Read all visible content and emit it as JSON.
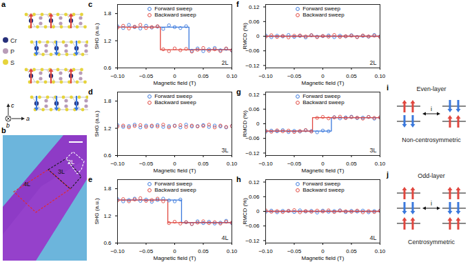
{
  "chart_data": [
    {
      "type": "scatter",
      "panel": "c",
      "annotation": "2L",
      "x_label": "Magnetic field (T)",
      "y_label": "SHG (a.u.)",
      "legend": "top",
      "grid": false,
      "xlim": [
        -0.1,
        0.1
      ],
      "ylim": [
        0.6,
        2.0
      ],
      "xticks": [
        {
          "value": -0.1,
          "label": "−0.10"
        },
        {
          "value": -0.05,
          "label": "−0.05"
        },
        0,
        0.05,
        {
          "value": 0.1,
          "label": "0.10"
        }
      ],
      "yticks": [
        0.6,
        1.2,
        1.8
      ],
      "x": [
        -0.1,
        -0.09,
        -0.08,
        -0.07,
        -0.06,
        -0.05,
        -0.04,
        -0.03,
        -0.02,
        -0.01,
        0,
        0.01,
        0.02,
        0.03,
        0.04,
        0.05,
        0.06,
        0.07,
        0.08,
        0.09,
        0.1
      ],
      "series": [
        {
          "name": "Forward sweep",
          "color": "#3a78dc",
          "marker": "circle",
          "line_style": "solid",
          "values": [
            1.52,
            1.48,
            1.55,
            1.5,
            1.47,
            1.53,
            1.49,
            1.51,
            1.46,
            1.54,
            1.5,
            1.48,
            1.52,
            0.98,
            1.03,
            0.97,
            1.01,
            1.04,
            0.99,
            1.02,
            0.98
          ],
          "fit_x": [
            -0.1,
            0.025,
            0.025,
            0.1
          ],
          "fit_values": [
            1.5,
            1.5,
            1.0,
            1.0
          ]
        },
        {
          "name": "Backward sweep",
          "color": "#e0463e",
          "marker": "circle",
          "line_style": "solid",
          "values": [
            1.49,
            1.53,
            1.47,
            1.51,
            1.55,
            1.48,
            1.5,
            1.52,
            1.01,
            0.97,
            1.03,
            0.99,
            1.02,
            0.96,
            1.0,
            1.04,
            0.98,
            1.01,
            0.97,
            1.03,
            0.99
          ],
          "fit_x": [
            0.1,
            -0.025,
            -0.025,
            -0.1
          ],
          "fit_values": [
            1.0,
            1.0,
            1.5,
            1.5
          ]
        }
      ]
    },
    {
      "type": "scatter",
      "panel": "d",
      "annotation": "3L",
      "x_label": "Magnetic field (T)",
      "y_label": "SHG (a.u.)",
      "legend": "top",
      "grid": false,
      "xlim": [
        -0.1,
        0.1
      ],
      "ylim": [
        0.6,
        2.0
      ],
      "xticks": [
        {
          "value": -0.1,
          "label": "−0.10"
        },
        {
          "value": -0.05,
          "label": "−0.05"
        },
        0,
        0.05,
        {
          "value": 0.1,
          "label": "0.10"
        }
      ],
      "yticks": [
        0.6,
        1.2,
        1.8
      ],
      "x": [
        -0.1,
        -0.09,
        -0.08,
        -0.07,
        -0.06,
        -0.05,
        -0.04,
        -0.03,
        -0.02,
        -0.01,
        0,
        0.01,
        0.02,
        0.03,
        0.04,
        0.05,
        0.06,
        0.07,
        0.08,
        0.09,
        0.1
      ],
      "series": [
        {
          "name": "Forward sweep",
          "color": "#3a78dc",
          "marker": "circle",
          "values": [
            1.27,
            1.23,
            1.25,
            1.28,
            1.22,
            1.26,
            1.24,
            1.27,
            1.23,
            1.25,
            1.26,
            1.22,
            1.28,
            1.24,
            1.25,
            1.27,
            1.23,
            1.26,
            1.24,
            1.22,
            1.25
          ]
        },
        {
          "name": "Backward sweep",
          "color": "#e0463e",
          "marker": "circle",
          "values": [
            1.24,
            1.26,
            1.22,
            1.25,
            1.27,
            1.23,
            1.26,
            1.24,
            1.28,
            1.22,
            1.25,
            1.27,
            1.23,
            1.26,
            1.24,
            1.25,
            1.28,
            1.22,
            1.26,
            1.23,
            1.25
          ]
        }
      ]
    },
    {
      "type": "scatter",
      "panel": "e",
      "annotation": "4L",
      "x_label": "Magnetic field (T)",
      "y_label": "SHG (a.u.)",
      "legend": "top",
      "grid": false,
      "xlim": [
        -0.1,
        0.1
      ],
      "ylim": [
        0.6,
        2.0
      ],
      "xticks": [
        {
          "value": -0.1,
          "label": "−0.10"
        },
        {
          "value": -0.05,
          "label": "−0.05"
        },
        0,
        0.05,
        {
          "value": 0.1,
          "label": "0.10"
        }
      ],
      "yticks": [
        0.6,
        1.2,
        1.8
      ],
      "x": [
        -0.1,
        -0.09,
        -0.08,
        -0.07,
        -0.06,
        -0.05,
        -0.04,
        -0.03,
        -0.02,
        -0.01,
        0,
        0.01,
        0.02,
        0.03,
        0.04,
        0.05,
        0.06,
        0.07,
        0.08,
        0.09,
        0.1
      ],
      "series": [
        {
          "name": "Forward sweep",
          "color": "#3a78dc",
          "marker": "circle",
          "line_style": "solid",
          "values": [
            1.57,
            1.52,
            1.55,
            1.58,
            1.53,
            1.56,
            1.51,
            1.55,
            1.58,
            1.54,
            1.52,
            1.56,
            1.06,
            1.02,
            1.08,
            1.04,
            1.07,
            1.03,
            1.05,
            1.09,
            1.04
          ],
          "fit_x": [
            -0.1,
            0.012,
            0.012,
            0.1
          ],
          "fit_values": [
            1.55,
            1.55,
            1.05,
            1.05
          ]
        },
        {
          "name": "Backward sweep",
          "color": "#e0463e",
          "marker": "circle",
          "line_style": "solid",
          "values": [
            1.54,
            1.57,
            1.52,
            1.56,
            1.59,
            1.53,
            1.55,
            1.58,
            1.52,
            1.04,
            1.07,
            1.03,
            1.06,
            1.02,
            1.05,
            1.08,
            1.04,
            1.06,
            1.03,
            1.07,
            1.05
          ],
          "fit_x": [
            0.1,
            -0.012,
            -0.012,
            -0.1
          ],
          "fit_values": [
            1.05,
            1.05,
            1.55,
            1.55
          ]
        }
      ]
    },
    {
      "type": "scatter",
      "panel": "f",
      "annotation": "2L",
      "x_label": "Magnetic field (T)",
      "y_label": "RMCD (%)",
      "legend": "top",
      "grid": false,
      "xlim": [
        -0.1,
        0.1
      ],
      "ylim": [
        -0.13,
        0.13
      ],
      "xticks": [
        {
          "value": -0.1,
          "label": "−0.10"
        },
        {
          "value": -0.05,
          "label": "−0.05"
        },
        0,
        0.05,
        {
          "value": 0.1,
          "label": "0.10"
        }
      ],
      "yticks": [
        {
          "value": -0.12,
          "label": "−0.12"
        },
        {
          "value": -0.06,
          "label": "−0.06"
        },
        0,
        0.06,
        0.12
      ],
      "x": [
        -0.1,
        -0.09,
        -0.08,
        -0.07,
        -0.06,
        -0.05,
        -0.04,
        -0.03,
        -0.02,
        -0.01,
        0,
        0.01,
        0.02,
        0.03,
        0.04,
        0.05,
        0.06,
        0.07,
        0.08,
        0.09,
        0.1
      ],
      "series": [
        {
          "name": "Forward sweep",
          "color": "#3a78dc",
          "marker": "circle",
          "line_style": "solid",
          "values": [
            0.003,
            -0.004,
            0.002,
            -0.001,
            0.005,
            -0.003,
            0.001,
            -0.005,
            0.004,
            -0.002,
            0,
            0.003,
            -0.004,
            0.002,
            -0.001,
            0.004,
            -0.003,
            0.001,
            -0.002,
            0.005,
            -0.001
          ],
          "fit_x": [
            -0.1,
            0.1
          ],
          "fit_values": [
            0,
            0
          ]
        },
        {
          "name": "Backward sweep",
          "color": "#e0463e",
          "marker": "circle",
          "line_style": "solid",
          "values": [
            -0.002,
            0.004,
            -0.003,
            0.001,
            -0.005,
            0.002,
            0.003,
            -0.001,
            0.004,
            -0.004,
            0.001,
            -0.002,
            0.005,
            -0.003,
            0,
            0.002,
            -0.004,
            0.003,
            -0.001,
            0.002,
            -0.003
          ],
          "fit_x": [
            0.1,
            -0.1
          ],
          "fit_values": [
            0,
            0
          ]
        }
      ]
    },
    {
      "type": "scatter",
      "panel": "g",
      "annotation": "3L",
      "x_label": "Magnetic field (T)",
      "y_label": "RMCD (%)",
      "legend": "top",
      "grid": false,
      "xlim": [
        -0.1,
        0.1
      ],
      "ylim": [
        -0.13,
        0.13
      ],
      "xticks": [
        {
          "value": -0.1,
          "label": "−0.10"
        },
        {
          "value": -0.05,
          "label": "−0.05"
        },
        0,
        0.05,
        {
          "value": 0.1,
          "label": "0.10"
        }
      ],
      "yticks": [
        {
          "value": -0.12,
          "label": "−0.12"
        },
        {
          "value": -0.06,
          "label": "−0.06"
        },
        0,
        0.06,
        0.12
      ],
      "x": [
        -0.1,
        -0.09,
        -0.08,
        -0.07,
        -0.06,
        -0.05,
        -0.04,
        -0.03,
        -0.02,
        -0.01,
        0,
        0.01,
        0.02,
        0.03,
        0.04,
        0.05,
        0.06,
        0.07,
        0.08,
        0.09,
        0.1
      ],
      "series": [
        {
          "name": "Forward sweep",
          "color": "#3a78dc",
          "marker": "circle",
          "line_style": "solid",
          "values": [
            -0.033,
            -0.028,
            -0.031,
            -0.026,
            -0.034,
            -0.029,
            -0.032,
            -0.027,
            -0.03,
            -0.035,
            -0.028,
            -0.031,
            0.027,
            0.022,
            0.026,
            0.029,
            0.023,
            0.025,
            0.028,
            0.021,
            0.026
          ],
          "fit_x": [
            -0.1,
            0.015,
            0.015,
            0.1
          ],
          "fit_values": [
            -0.03,
            -0.03,
            0.025,
            0.025
          ]
        },
        {
          "name": "Backward sweep",
          "color": "#e0463e",
          "marker": "circle",
          "line_style": "solid",
          "values": [
            -0.029,
            -0.033,
            -0.027,
            -0.031,
            -0.028,
            -0.034,
            -0.03,
            -0.026,
            -0.032,
            0.024,
            0.028,
            0.022,
            0.026,
            0.029,
            0.023,
            0.027,
            0.025,
            0.021,
            0.028,
            0.024,
            0.026
          ],
          "fit_x": [
            0.1,
            -0.018,
            -0.018,
            -0.1
          ],
          "fit_values": [
            0.025,
            0.025,
            -0.03,
            -0.03
          ]
        }
      ]
    },
    {
      "type": "scatter",
      "panel": "h",
      "annotation": "4L",
      "x_label": "Magnetic field (T)",
      "y_label": "RMCD (%)",
      "legend": "top",
      "grid": false,
      "xlim": [
        -0.1,
        0.1
      ],
      "ylim": [
        -0.13,
        0.13
      ],
      "xticks": [
        {
          "value": -0.1,
          "label": "−0.10"
        },
        {
          "value": -0.05,
          "label": "−0.05"
        },
        0,
        0.05,
        {
          "value": 0.1,
          "label": "0.10"
        }
      ],
      "yticks": [
        {
          "value": -0.12,
          "label": "−0.12"
        },
        {
          "value": -0.06,
          "label": "−0.06"
        },
        0,
        0.06,
        0.12
      ],
      "x": [
        -0.1,
        -0.09,
        -0.08,
        -0.07,
        -0.06,
        -0.05,
        -0.04,
        -0.03,
        -0.02,
        -0.01,
        0,
        0.01,
        0.02,
        0.03,
        0.04,
        0.05,
        0.06,
        0.07,
        0.08,
        0.09,
        0.1
      ],
      "series": [
        {
          "name": "Forward sweep",
          "color": "#3a78dc",
          "marker": "circle",
          "line_style": "solid",
          "values": [
            -0.002,
            0.003,
            -0.004,
            0.002,
            0.001,
            -0.003,
            0.004,
            -0.001,
            0.002,
            -0.005,
            0.003,
            -0.002,
            0.001,
            0.004,
            -0.003,
            0.002,
            -0.001,
            0.003,
            -0.004,
            0.001,
            0.002
          ],
          "fit_x": [
            -0.1,
            0.1
          ],
          "fit_values": [
            0,
            0
          ]
        },
        {
          "name": "Backward sweep",
          "color": "#e0463e",
          "marker": "circle",
          "line_style": "solid",
          "values": [
            0.004,
            -0.002,
            0.001,
            -0.003,
            0.002,
            0.005,
            -0.004,
            0.001,
            -0.002,
            0.003,
            -0.001,
            0.004,
            -0.003,
            0.002,
            0,
            -0.002,
            0.003,
            -0.004,
            0.001,
            -0.003,
            0.002
          ],
          "fit_x": [
            0.1,
            -0.1
          ],
          "fit_values": [
            0,
            0
          ]
        }
      ]
    }
  ],
  "structure": {
    "panel": "a",
    "atoms": [
      {
        "label": "Cr",
        "color": "#27307a"
      },
      {
        "label": "P",
        "color": "#b89cb8"
      },
      {
        "label": "S",
        "color": "#e6d43c"
      }
    ],
    "axes": [
      "c",
      "b",
      "a"
    ],
    "layer_spins": [
      1,
      -1,
      1,
      -1
    ]
  },
  "image": {
    "panel": "b",
    "regions": [
      {
        "label": "4L",
        "color": "#e52a2a"
      },
      {
        "label": "3L",
        "color": "#1a1a1a"
      },
      {
        "label": "2L",
        "color": "#ffffff"
      }
    ]
  },
  "diagrams": [
    {
      "panel": "i",
      "title": "Even-layer",
      "subtitle": "Non-centrosymmetric",
      "symbol": "i",
      "left": [
        1,
        -1
      ],
      "right": [
        -1,
        1
      ]
    },
    {
      "panel": "j",
      "title": "Odd-layer",
      "subtitle": "Centrosymmetric",
      "symbol": "i",
      "left": [
        1,
        -1,
        1
      ],
      "right": [
        1,
        -1,
        1
      ]
    }
  ]
}
